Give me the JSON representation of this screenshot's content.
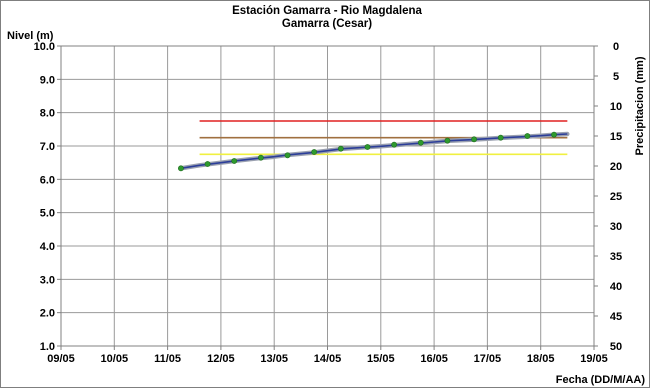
{
  "chart_data": {
    "type": "line",
    "title": "Estación Gamarra - Rio Magdalena",
    "subtitle": "Gamarra (Cesar)",
    "ylabel": "Nivel (m)",
    "y2label": "Precipitacion (mm)",
    "xlabel": "Fecha (DD/M/AA)",
    "ylim": [
      1.0,
      10.0
    ],
    "y2lim": [
      0,
      50
    ],
    "xlim": [
      9,
      19
    ],
    "y_ticks": [
      "1.0",
      "2.0",
      "3.0",
      "4.0",
      "5.0",
      "6.0",
      "7.0",
      "8.0",
      "9.0",
      "10.0"
    ],
    "y2_ticks": [
      "0",
      "5",
      "10",
      "15",
      "20",
      "25",
      "30",
      "35",
      "40",
      "45",
      "50"
    ],
    "x_ticks": [
      "09/05",
      "10/05",
      "11/05",
      "12/05",
      "13/05",
      "14/05",
      "15/05",
      "16/05",
      "17/05",
      "18/05",
      "19/05"
    ],
    "grid": true,
    "threshold_lines": [
      {
        "y": 7.75,
        "x_start": 11.6,
        "x_end": 18.5,
        "color": "#e02020"
      },
      {
        "y": 7.25,
        "x_start": 11.6,
        "x_end": 18.5,
        "color": "#a07040"
      },
      {
        "y": 6.75,
        "x_start": 11.6,
        "x_end": 18.5,
        "color": "#f0f040"
      }
    ],
    "series": [
      {
        "color": "#2c3e99",
        "x": [
          11.25,
          11.6,
          12.0,
          12.3,
          12.7,
          13.0,
          13.3,
          13.7,
          14.0,
          14.3,
          14.7,
          15.0,
          15.3,
          15.7,
          16.0,
          16.3,
          16.7,
          17.0,
          17.3,
          17.7,
          18.0,
          18.25,
          18.5
        ],
        "y": [
          6.33,
          6.42,
          6.5,
          6.56,
          6.63,
          6.68,
          6.74,
          6.8,
          6.86,
          6.92,
          6.96,
          6.99,
          7.03,
          7.08,
          7.12,
          7.16,
          7.19,
          7.22,
          7.25,
          7.28,
          7.31,
          7.34,
          7.36
        ]
      }
    ],
    "markers": {
      "color": "#2e9a2e",
      "x": [
        11.25,
        11.75,
        12.25,
        12.75,
        13.25,
        13.75,
        14.25,
        14.75,
        15.25,
        15.75,
        16.25,
        16.75,
        17.25,
        17.75,
        18.25
      ],
      "y": [
        6.33,
        6.46,
        6.55,
        6.65,
        6.72,
        6.82,
        6.92,
        6.97,
        7.04,
        7.1,
        7.16,
        7.2,
        7.25,
        7.3,
        7.34
      ]
    }
  }
}
